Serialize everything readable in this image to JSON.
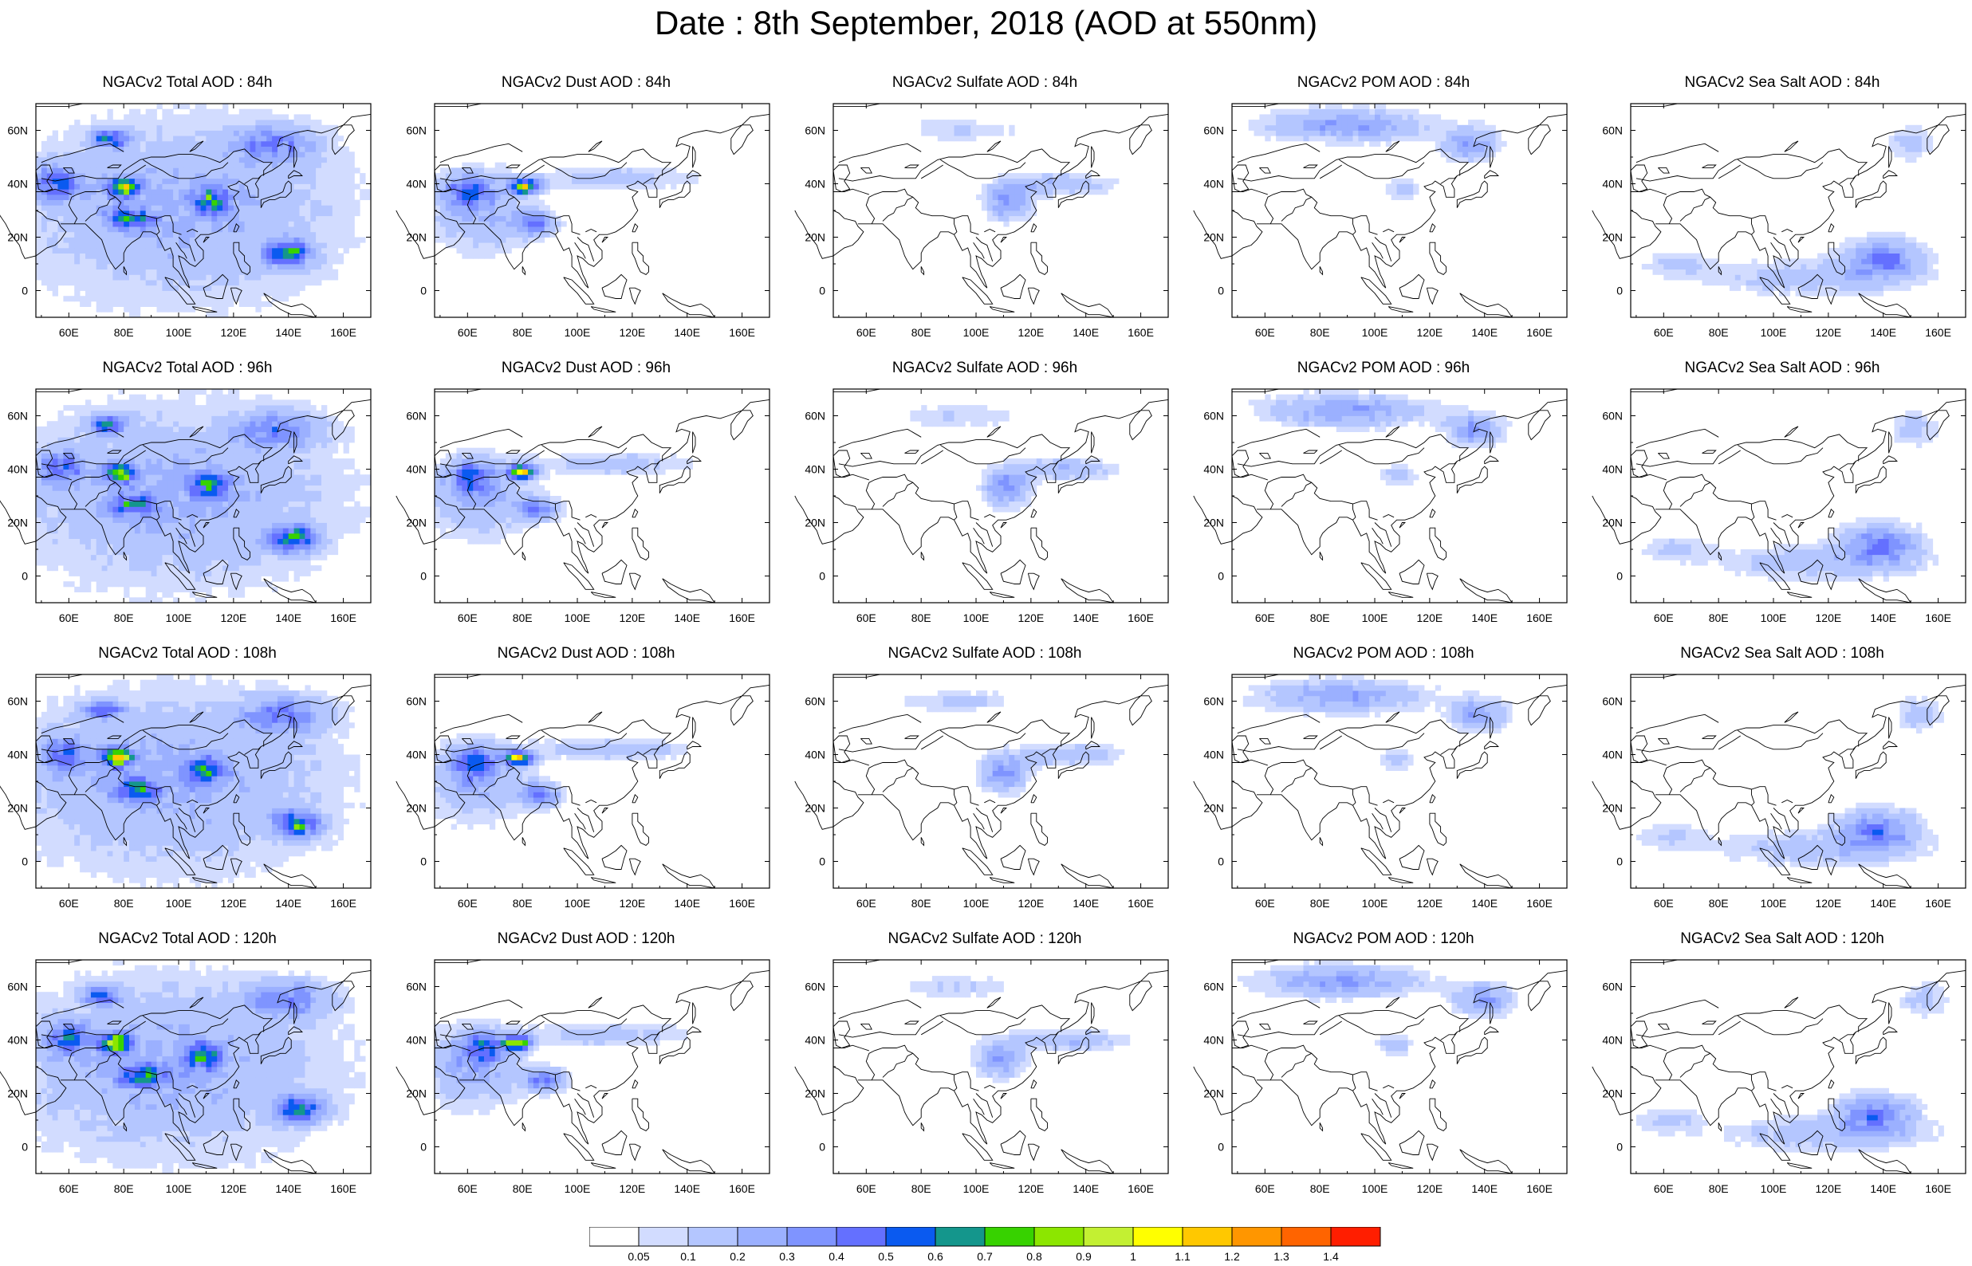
{
  "figure_title": "Date : 8th September, 2018 (AOD at 550nm)",
  "x_ticks": [
    "60E",
    "80E",
    "100E",
    "120E",
    "140E",
    "160E"
  ],
  "y_ticks": [
    "60N",
    "40N",
    "20N",
    "0"
  ],
  "colorbar": {
    "colors": [
      "#ffffff",
      "#d2dcff",
      "#b4c6ff",
      "#9bb0ff",
      "#7f94ff",
      "#6470ff",
      "#0a5af0",
      "#14968c",
      "#37d200",
      "#8ce600",
      "#c3f032",
      "#ffff00",
      "#ffc800",
      "#ff9600",
      "#ff6400",
      "#ff1e00"
    ],
    "labels": [
      "0.05",
      "0.1",
      "0.2",
      "0.3",
      "0.4",
      "0.5",
      "0.6",
      "0.7",
      "0.8",
      "0.9",
      "1",
      "1.1",
      "1.2",
      "1.3",
      "1.4"
    ]
  },
  "panels": [
    {
      "title": "NGACv2 Total AOD : 84h",
      "type": "total",
      "hour": 84
    },
    {
      "title": "NGACv2 Dust AOD : 84h",
      "type": "dust",
      "hour": 84
    },
    {
      "title": "NGACv2 Sulfate AOD : 84h",
      "type": "sulfate",
      "hour": 84
    },
    {
      "title": "NGACv2 POM AOD : 84h",
      "type": "pom",
      "hour": 84
    },
    {
      "title": "NGACv2 Sea Salt AOD : 84h",
      "type": "seasalt",
      "hour": 84
    },
    {
      "title": "NGACv2 Total AOD : 96h",
      "type": "total",
      "hour": 96
    },
    {
      "title": "NGACv2 Dust AOD : 96h",
      "type": "dust",
      "hour": 96
    },
    {
      "title": "NGACv2 Sulfate AOD : 96h",
      "type": "sulfate",
      "hour": 96
    },
    {
      "title": "NGACv2 POM AOD : 96h",
      "type": "pom",
      "hour": 96
    },
    {
      "title": "NGACv2 Sea Salt AOD : 96h",
      "type": "seasalt",
      "hour": 96
    },
    {
      "title": "NGACv2 Total AOD : 108h",
      "type": "total",
      "hour": 108
    },
    {
      "title": "NGACv2 Dust AOD : 108h",
      "type": "dust",
      "hour": 108
    },
    {
      "title": "NGACv2 Sulfate AOD : 108h",
      "type": "sulfate",
      "hour": 108
    },
    {
      "title": "NGACv2 POM AOD : 108h",
      "type": "pom",
      "hour": 108
    },
    {
      "title": "NGACv2 Sea Salt AOD : 108h",
      "type": "seasalt",
      "hour": 108
    },
    {
      "title": "NGACv2 Total AOD : 120h",
      "type": "total",
      "hour": 120
    },
    {
      "title": "NGACv2 Dust AOD : 120h",
      "type": "dust",
      "hour": 120
    },
    {
      "title": "NGACv2 Sulfate AOD : 120h",
      "type": "sulfate",
      "hour": 120
    },
    {
      "title": "NGACv2 POM AOD : 120h",
      "type": "pom",
      "hour": 120
    },
    {
      "title": "NGACv2 Sea Salt  AOD : 120h",
      "type": "seasalt",
      "hour": 120
    }
  ],
  "field_blobs": {
    "total": [
      {
        "lon": 100,
        "lat": 30,
        "rx": 70,
        "ry": 40,
        "v": 0.22
      },
      {
        "lon": 55,
        "lat": 40,
        "rx": 10,
        "ry": 8,
        "v": 0.42
      },
      {
        "lon": 80,
        "lat": 39,
        "rx": 7,
        "ry": 4,
        "v": 0.8
      },
      {
        "lon": 82,
        "lat": 27,
        "rx": 10,
        "ry": 5,
        "v": 0.45
      },
      {
        "lon": 112,
        "lat": 34,
        "rx": 8,
        "ry": 6,
        "v": 0.5
      },
      {
        "lon": 140,
        "lat": 14,
        "rx": 10,
        "ry": 6,
        "v": 0.6
      },
      {
        "lon": 75,
        "lat": 57,
        "rx": 8,
        "ry": 4,
        "v": 0.5
      },
      {
        "lon": 135,
        "lat": 55,
        "rx": 18,
        "ry": 8,
        "v": 0.35
      }
    ],
    "dust": [
      {
        "lon": 65,
        "lat": 30,
        "rx": 22,
        "ry": 18,
        "v": 0.22
      },
      {
        "lon": 60,
        "lat": 37,
        "rx": 10,
        "ry": 7,
        "v": 0.42
      },
      {
        "lon": 81,
        "lat": 39,
        "rx": 6,
        "ry": 3,
        "v": 0.95
      },
      {
        "lon": 84,
        "lat": 25,
        "rx": 9,
        "ry": 5,
        "v": 0.4
      },
      {
        "lon": 115,
        "lat": 42,
        "rx": 35,
        "ry": 5,
        "v": 0.16
      }
    ],
    "sulfate": [
      {
        "lon": 112,
        "lat": 33,
        "rx": 10,
        "ry": 8,
        "v": 0.32
      },
      {
        "lon": 130,
        "lat": 40,
        "rx": 24,
        "ry": 5,
        "v": 0.18
      },
      {
        "lon": 95,
        "lat": 60,
        "rx": 25,
        "ry": 5,
        "v": 0.12
      }
    ],
    "pom": [
      {
        "lon": 90,
        "lat": 62,
        "rx": 35,
        "ry": 7,
        "v": 0.28
      },
      {
        "lon": 135,
        "lat": 55,
        "rx": 12,
        "ry": 7,
        "v": 0.3
      },
      {
        "lon": 110,
        "lat": 38,
        "rx": 8,
        "ry": 5,
        "v": 0.14
      }
    ],
    "seasalt": [
      {
        "lon": 140,
        "lat": 12,
        "rx": 16,
        "ry": 9,
        "v": 0.38
      },
      {
        "lon": 115,
        "lat": 5,
        "rx": 45,
        "ry": 8,
        "v": 0.16
      },
      {
        "lon": 65,
        "lat": 10,
        "rx": 15,
        "ry": 6,
        "v": 0.12
      },
      {
        "lon": 150,
        "lat": 55,
        "rx": 10,
        "ry": 8,
        "v": 0.14
      }
    ]
  }
}
